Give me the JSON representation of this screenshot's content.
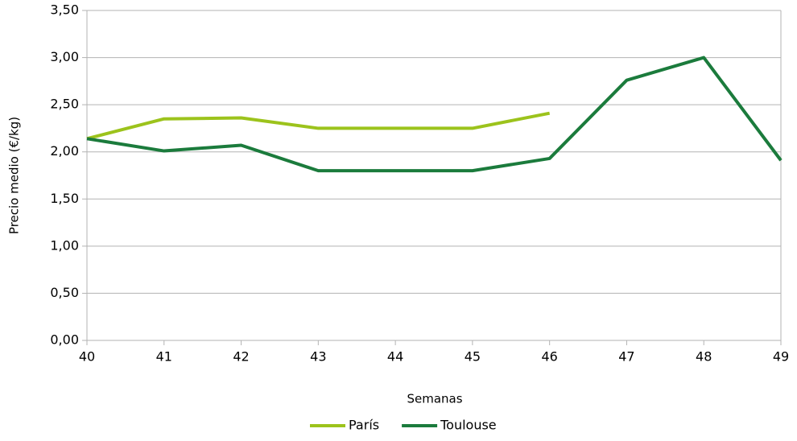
{
  "chart_data": {
    "type": "line",
    "x_label": "Semanas",
    "y_label": "Precio medio (€/kg)",
    "x": [
      40,
      41,
      42,
      43,
      44,
      45,
      46,
      47,
      48,
      49
    ],
    "series": [
      {
        "name": "París",
        "color": "#9cc31c",
        "values": [
          2.14,
          2.35,
          2.36,
          2.25,
          2.25,
          2.25,
          2.41,
          null,
          null,
          null
        ]
      },
      {
        "name": "Toulouse",
        "color": "#1b7b3c",
        "values": [
          2.14,
          2.01,
          2.07,
          1.8,
          1.8,
          1.8,
          1.93,
          2.76,
          3.0,
          1.91
        ]
      }
    ],
    "xlim": [
      40,
      49
    ],
    "xticks": [
      40,
      41,
      42,
      43,
      44,
      45,
      46,
      47,
      48,
      49
    ],
    "ylim": [
      0,
      3.5
    ],
    "yticks": [
      {
        "value": 0,
        "label": "0,00"
      },
      {
        "value": 0.5,
        "label": "0,50"
      },
      {
        "value": 1,
        "label": "1,00"
      },
      {
        "value": 1.5,
        "label": "1,50"
      },
      {
        "value": 2,
        "label": "2,00"
      },
      {
        "value": 2.5,
        "label": "2,50"
      },
      {
        "value": 3,
        "label": "3,00"
      },
      {
        "value": 3.5,
        "label": "3,50"
      }
    ],
    "grid": true,
    "legend": "bottom"
  }
}
